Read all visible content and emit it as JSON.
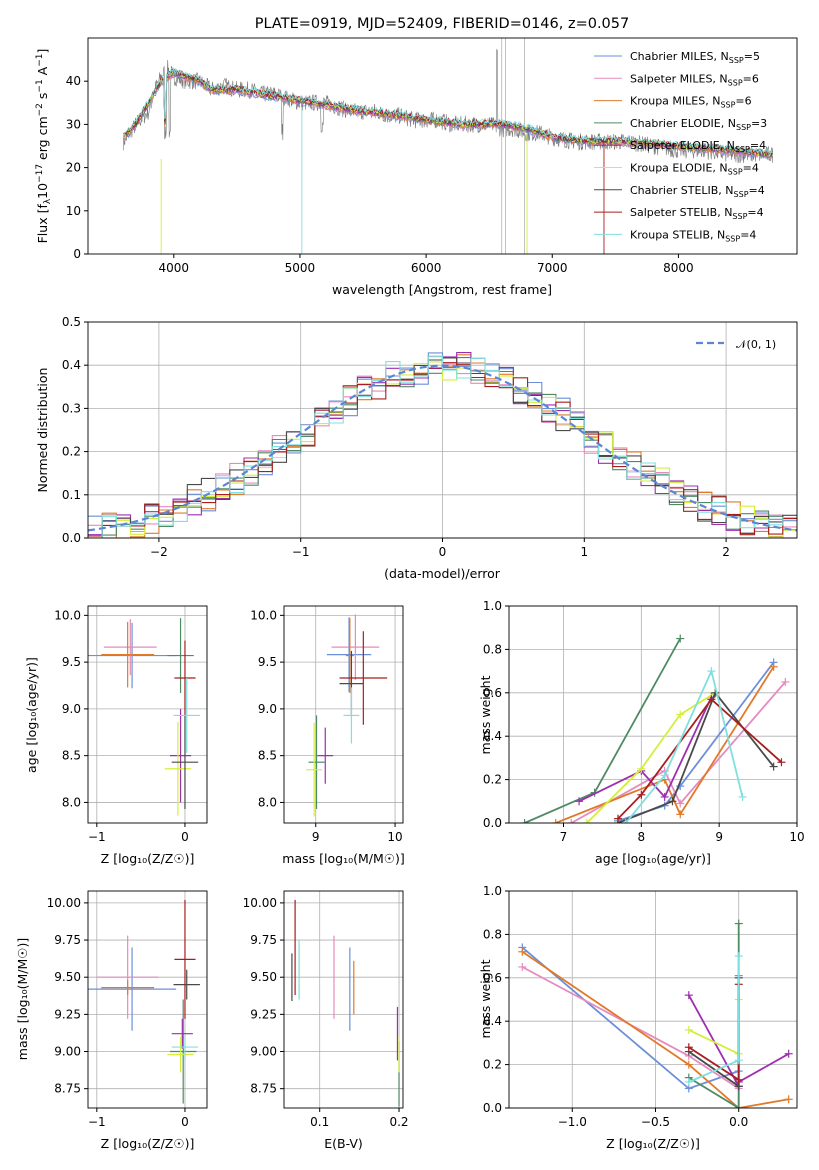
{
  "chart_data": [
    {
      "type": "line",
      "title": "PLATE=0919, MJD=52409, FIBERID=0146, z=0.057",
      "xlabel": "wavelength [Angstrom, rest frame]",
      "ylabel": "Flux [f_λ10^-17 erg cm^-2 s^-1 A^-1]",
      "xlim": [
        3320,
        8940
      ],
      "ylim": [
        0,
        50
      ],
      "xticks": [
        "4000",
        "5000",
        "6000",
        "7000",
        "8000"
      ],
      "yticks": [
        "0",
        "10",
        "20",
        "30",
        "40"
      ],
      "legend_position": "top-right",
      "legend": [
        {
          "base": "Chabrier MILES, N",
          "n": "5",
          "color": "#6b8fd9"
        },
        {
          "base": "Salpeter MILES, N",
          "n": "6",
          "color": "#e58bbf"
        },
        {
          "base": "Kroupa MILES, N",
          "n": "6",
          "color": "#e07a28"
        },
        {
          "base": "Chabrier ELODIE, N",
          "n": "3",
          "color": "#4e8a63"
        },
        {
          "base": "Salpeter ELODIE, N",
          "n": "4",
          "color": "#9c2fb0"
        },
        {
          "base": "Kroupa ELODIE, N",
          "n": "4",
          "color": "#d5ee3c"
        },
        {
          "base": "Chabrier STELIB, N",
          "n": "4",
          "color": "#4a4a4a"
        },
        {
          "base": "Salpeter STELIB, N",
          "n": "4",
          "color": "#a81e1e"
        },
        {
          "base": "Kroupa STELIB, N",
          "n": "4",
          "color": "#7fe0de"
        }
      ],
      "legend_sub": "SSP",
      "data_series": {
        "x": [
          3600,
          3700,
          3800,
          3850,
          3900,
          3950,
          4000,
          4100,
          4200,
          4300,
          4400,
          4500,
          4600,
          4700,
          4800,
          4900,
          5000,
          5100,
          5200,
          5300,
          5400,
          5500,
          5600,
          5700,
          5800,
          5900,
          6000,
          6100,
          6200,
          6300,
          6400,
          6500,
          6600,
          6700,
          6800,
          6900,
          7000,
          7200,
          7400,
          7600,
          7800,
          8000,
          8200,
          8400,
          8600,
          8750
        ],
        "y": [
          26,
          30,
          33,
          38,
          41,
          43,
          41,
          40,
          40,
          38,
          39,
          38,
          38,
          37,
          37,
          36,
          35,
          35,
          35,
          34,
          33,
          33,
          33,
          32,
          32,
          31,
          31,
          31,
          30,
          30,
          30,
          30,
          29,
          29,
          28,
          28,
          27,
          26,
          26,
          26,
          25,
          24,
          24,
          23,
          23,
          23
        ]
      },
      "model_series": {
        "x": [
          3600,
          3700,
          3800,
          3900,
          4000,
          4100,
          4200,
          4300,
          4500,
          4700,
          4900,
          5100,
          5300,
          5500,
          5800,
          6000,
          6300,
          6600,
          6800,
          7000,
          7300,
          7600,
          8000,
          8400,
          8750
        ],
        "y": [
          27,
          30,
          35,
          40,
          42,
          41,
          40,
          38,
          38,
          37,
          36,
          35,
          34,
          33,
          32,
          31,
          30,
          30,
          29,
          27,
          26,
          26,
          25,
          24,
          23
        ]
      }
    },
    {
      "type": "bar",
      "xlabel": "(data-model)/error",
      "ylabel": "Normed distribution",
      "xlim": [
        -2.5,
        2.5
      ],
      "ylim": [
        0,
        0.5
      ],
      "xticks": [
        "−2",
        "−1",
        "0",
        "1",
        "2"
      ],
      "yticks": [
        "0.0",
        "0.1",
        "0.2",
        "0.3",
        "0.4",
        "0.5"
      ],
      "legend": [
        {
          "label": "𝒩(0, 1)",
          "color": "#5b86d6"
        }
      ],
      "legend_position": "top-right",
      "bin_width": 0.1
    },
    {
      "type": "scatter",
      "xlabel": "Z [log₁₀(Z/Z☉)]",
      "ylabel": "age  [log₁₀(age/yr)]",
      "xlim": [
        -1.1,
        0.25
      ],
      "ylim": [
        7.78,
        10.1
      ],
      "xticks": [
        "−1",
        "0"
      ],
      "yticks": [
        "8.0",
        "8.5",
        "9.0",
        "9.5",
        "10.0"
      ],
      "points": [
        {
          "x": -0.6,
          "y": 9.57,
          "xe": 0.5,
          "ye": 0.35,
          "color": "#6b8fd9"
        },
        {
          "x": -0.62,
          "y": 9.66,
          "xe": 0.3,
          "ye": 0.3,
          "color": "#e58bbf"
        },
        {
          "x": -0.65,
          "y": 9.58,
          "xe": 0.3,
          "ye": 0.35,
          "color": "#e07a28"
        },
        {
          "x": -0.05,
          "y": 9.57,
          "xe": 0.15,
          "ye": 0.4,
          "color": "#4e8a63"
        },
        {
          "x": -0.05,
          "y": 8.5,
          "xe": 0.12,
          "ye": 0.5,
          "color": "#9c2fb0"
        },
        {
          "x": -0.08,
          "y": 8.36,
          "xe": 0.15,
          "ye": 0.5,
          "color": "#d5ee3c"
        },
        {
          "x": 0.0,
          "y": 8.43,
          "xe": 0.15,
          "ye": 0.5,
          "color": "#4a4a4a"
        },
        {
          "x": 0.0,
          "y": 9.33,
          "xe": 0.12,
          "ye": 0.4,
          "color": "#a81e1e"
        },
        {
          "x": 0.02,
          "y": 8.93,
          "xe": 0.15,
          "ye": 0.4,
          "color": "#7fe0de"
        }
      ]
    },
    {
      "type": "scatter",
      "xlabel": "mass [log₁₀(M/M☉)]",
      "xlim": [
        8.6,
        10.1
      ],
      "ylim": [
        7.78,
        10.1
      ],
      "xticks": [
        "9",
        "10"
      ],
      "yticks": [
        "8.0",
        "8.5",
        "9.0",
        "9.5",
        "10.0"
      ],
      "points": [
        {
          "x": 9.42,
          "y": 9.58,
          "xe": 0.28,
          "ye": 0.4,
          "color": "#6b8fd9"
        },
        {
          "x": 9.5,
          "y": 9.66,
          "xe": 0.3,
          "ye": 0.35,
          "color": "#e58bbf"
        },
        {
          "x": 9.43,
          "y": 9.57,
          "xe": 0.05,
          "ye": 0.4,
          "color": "#e07a28"
        },
        {
          "x": 9.01,
          "y": 8.43,
          "xe": 0.1,
          "ye": 0.5,
          "color": "#4e8a63"
        },
        {
          "x": 9.12,
          "y": 8.5,
          "xe": 0.1,
          "ye": 0.3,
          "color": "#9c2fb0"
        },
        {
          "x": 8.98,
          "y": 8.35,
          "xe": 0.1,
          "ye": 0.5,
          "color": "#d5ee3c"
        },
        {
          "x": 9.45,
          "y": 9.27,
          "xe": 0.15,
          "ye": 0.35,
          "color": "#4a4a4a"
        },
        {
          "x": 9.6,
          "y": 9.33,
          "xe": 0.3,
          "ye": 0.5,
          "color": "#a81e1e"
        },
        {
          "x": 9.45,
          "y": 8.93,
          "xe": 0.1,
          "ye": 0.3,
          "color": "#7fe0de"
        }
      ]
    },
    {
      "type": "line",
      "xlabel": "age  [log₁₀(age/yr)]",
      "ylabel": "mass weight",
      "xlim": [
        6.3,
        10.0
      ],
      "ylim": [
        0,
        1.0
      ],
      "xticks": [
        "7",
        "8",
        "9",
        "10"
      ],
      "yticks": [
        "0.0",
        "0.2",
        "0.4",
        "0.6",
        "0.8",
        "1.0"
      ],
      "series": [
        {
          "color": "#6b8fd9",
          "x": [
            7.7,
            8.3,
            8.5,
            9.7
          ],
          "y": [
            0.01,
            0.08,
            0.17,
            0.74
          ]
        },
        {
          "color": "#e58bbf",
          "x": [
            7.1,
            8.3,
            8.5,
            9.85
          ],
          "y": [
            0.0,
            0.24,
            0.09,
            0.65
          ]
        },
        {
          "color": "#e07a28",
          "x": [
            6.9,
            8.3,
            8.5,
            9.7
          ],
          "y": [
            0.0,
            0.2,
            0.04,
            0.72
          ]
        },
        {
          "color": "#4e8a63",
          "x": [
            6.5,
            7.4,
            8.5
          ],
          "y": [
            0.0,
            0.14,
            0.85
          ]
        },
        {
          "color": "#9c2fb0",
          "x": [
            7.2,
            8.0,
            8.3,
            8.9
          ],
          "y": [
            0.1,
            0.24,
            0.12,
            0.58
          ]
        },
        {
          "color": "#d5ee3c",
          "x": [
            7.3,
            8.0,
            8.5,
            8.95
          ],
          "y": [
            0.0,
            0.25,
            0.5,
            0.6
          ]
        },
        {
          "color": "#4a4a4a",
          "x": [
            7.7,
            8.4,
            8.95,
            9.7
          ],
          "y": [
            0.0,
            0.1,
            0.6,
            0.26
          ]
        },
        {
          "color": "#a81e1e",
          "x": [
            7.7,
            8.0,
            8.9,
            9.8
          ],
          "y": [
            0.02,
            0.13,
            0.57,
            0.28
          ]
        },
        {
          "color": "#7fe0de",
          "x": [
            7.8,
            8.3,
            8.9,
            9.3
          ],
          "y": [
            0.0,
            0.22,
            0.7,
            0.12
          ]
        }
      ]
    },
    {
      "type": "scatter",
      "xlabel": "Z [log₁₀(Z/Z☉)]",
      "ylabel": "mass [log₁₀(M/M☉)]",
      "xlim": [
        -1.1,
        0.25
      ],
      "ylim": [
        8.62,
        10.08
      ],
      "xticks": [
        "−1",
        "0"
      ],
      "yticks": [
        "8.75",
        "9.00",
        "9.25",
        "9.50",
        "9.75",
        "10.00"
      ],
      "points": [
        {
          "x": -0.6,
          "y": 9.42,
          "xe": 0.5,
          "ye": 0.28,
          "color": "#6b8fd9"
        },
        {
          "x": -0.65,
          "y": 9.5,
          "xe": 0.35,
          "ye": 0.28,
          "color": "#e58bbf"
        },
        {
          "x": -0.65,
          "y": 9.43,
          "xe": 0.3,
          "ye": 0.05,
          "color": "#e07a28"
        },
        {
          "x": -0.02,
          "y": 9.0,
          "xe": 0.15,
          "ye": 0.35,
          "color": "#4e8a63"
        },
        {
          "x": -0.03,
          "y": 9.12,
          "xe": 0.12,
          "ye": 0.1,
          "color": "#9c2fb0"
        },
        {
          "x": -0.05,
          "y": 8.98,
          "xe": 0.15,
          "ye": 0.12,
          "color": "#d5ee3c"
        },
        {
          "x": 0.02,
          "y": 9.45,
          "xe": 0.15,
          "ye": 0.1,
          "color": "#4a4a4a"
        },
        {
          "x": 0.0,
          "y": 9.62,
          "xe": 0.12,
          "ye": 0.4,
          "color": "#a81e1e"
        },
        {
          "x": 0.0,
          "y": 9.03,
          "xe": 0.15,
          "ye": 0.08,
          "color": "#7fe0de"
        }
      ]
    },
    {
      "type": "scatter",
      "xlabel": "E(B-V)",
      "xlim": [
        0.055,
        0.205
      ],
      "ylim": [
        8.62,
        10.08
      ],
      "xticks": [
        "0.1",
        "0.2"
      ],
      "yticks": [
        "8.75",
        "9.00",
        "9.25",
        "9.50",
        "9.75",
        "10.00"
      ],
      "points": [
        {
          "x": 0.138,
          "y": 9.42,
          "ye": 0.28,
          "color": "#6b8fd9"
        },
        {
          "x": 0.118,
          "y": 9.5,
          "ye": 0.28,
          "color": "#e58bbf"
        },
        {
          "x": 0.143,
          "y": 9.43,
          "ye": 0.18,
          "color": "#e07a28"
        },
        {
          "x": 0.2,
          "y": 8.85,
          "ye": 0.22,
          "color": "#4e8a63"
        },
        {
          "x": 0.198,
          "y": 9.12,
          "ye": 0.18,
          "color": "#9c2fb0"
        },
        {
          "x": 0.2,
          "y": 8.98,
          "ye": 0.12,
          "color": "#d5ee3c"
        },
        {
          "x": 0.065,
          "y": 9.5,
          "ye": 0.16,
          "color": "#4a4a4a"
        },
        {
          "x": 0.069,
          "y": 9.7,
          "ye": 0.32,
          "color": "#a81e1e"
        },
        {
          "x": 0.074,
          "y": 9.55,
          "ye": 0.2,
          "color": "#7fe0de"
        }
      ]
    },
    {
      "type": "line",
      "xlabel": "Z [log₁₀(Z/Z☉)]",
      "ylabel": "mass weight",
      "xlim": [
        -1.38,
        0.35
      ],
      "ylim": [
        0,
        1.0
      ],
      "xticks": [
        "−1.0",
        "−0.5",
        "0.0"
      ],
      "yticks": [
        "0.0",
        "0.2",
        "0.4",
        "0.6",
        "0.8",
        "1.0"
      ],
      "series": [
        {
          "color": "#6b8fd9",
          "x": [
            -1.3,
            -0.3,
            0.0,
            0.0
          ],
          "y": [
            0.74,
            0.09,
            0.17,
            0.61
          ]
        },
        {
          "color": "#e58bbf",
          "x": [
            -1.3,
            -0.3,
            0.0,
            0.0
          ],
          "y": [
            0.65,
            0.24,
            0.09,
            0.0
          ]
        },
        {
          "color": "#e07a28",
          "x": [
            -1.3,
            -0.3,
            0.0,
            0.3
          ],
          "y": [
            0.72,
            0.2,
            0.0,
            0.04
          ]
        },
        {
          "color": "#4e8a63",
          "x": [
            -0.3,
            0.0,
            0.0
          ],
          "y": [
            0.14,
            0.0,
            0.85
          ]
        },
        {
          "color": "#9c2fb0",
          "x": [
            -0.3,
            0.0,
            0.0,
            0.3
          ],
          "y": [
            0.52,
            0.1,
            0.12,
            0.25
          ]
        },
        {
          "color": "#d5ee3c",
          "x": [
            -0.3,
            0.0,
            0.0
          ],
          "y": [
            0.36,
            0.25,
            0.5
          ]
        },
        {
          "color": "#4a4a4a",
          "x": [
            -0.3,
            0.0,
            0.0
          ],
          "y": [
            0.26,
            0.1,
            0.6
          ]
        },
        {
          "color": "#a81e1e",
          "x": [
            -0.3,
            0.0,
            0.0
          ],
          "y": [
            0.28,
            0.13,
            0.57
          ]
        },
        {
          "color": "#7fe0de",
          "x": [
            -0.3,
            0.0,
            0.0
          ],
          "y": [
            0.12,
            0.22,
            0.7
          ]
        }
      ]
    }
  ]
}
